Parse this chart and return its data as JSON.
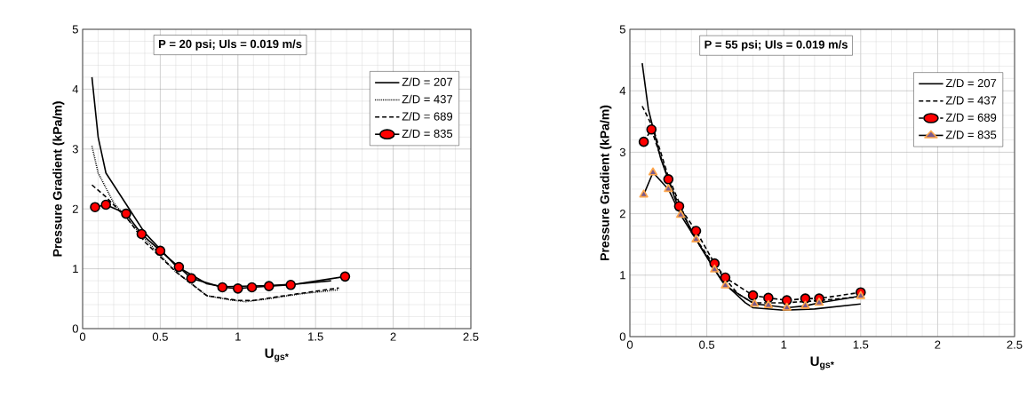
{
  "chart_data": [
    {
      "type": "line",
      "title": "P = 20 psi; Uls = 0.019 m/s",
      "xlabel": "U$_{gs*}$",
      "ylabel": "Pressure Gradient (kPa/m)",
      "xlim": [
        0,
        2.5
      ],
      "ylim": [
        0,
        5
      ],
      "xticks": [
        0,
        0.5,
        1,
        1.5,
        2,
        2.5
      ],
      "yticks": [
        0,
        1,
        2,
        3,
        4,
        5
      ],
      "grid": true,
      "legend": "top right",
      "series": [
        {
          "name": "Z/D = 207",
          "color": "#000000",
          "line_style": "solid",
          "marker": "none",
          "x": [
            0.06,
            0.1,
            0.15,
            0.25,
            0.4,
            0.6,
            0.8,
            0.9,
            1.2,
            1.4,
            1.6
          ],
          "values": [
            4.2,
            3.2,
            2.6,
            2.2,
            1.6,
            1.05,
            0.75,
            0.7,
            0.72,
            0.75,
            0.8
          ]
        },
        {
          "name": "Z/D = 437",
          "color": "#000000",
          "line_style": "dotted",
          "marker": "none",
          "x": [
            0.06,
            0.1,
            0.2,
            0.4,
            0.6,
            0.8,
            0.95,
            1.05,
            1.2,
            1.4,
            1.65
          ],
          "values": [
            3.05,
            2.6,
            2.1,
            1.5,
            0.95,
            0.55,
            0.48,
            0.45,
            0.5,
            0.58,
            0.65
          ]
        },
        {
          "name": "Z/D = 689",
          "color": "#000000",
          "line_style": "dashed",
          "marker": "none",
          "x": [
            0.06,
            0.15,
            0.3,
            0.4,
            0.6,
            0.8,
            1.0,
            1.1,
            1.3,
            1.65
          ],
          "values": [
            2.4,
            2.2,
            1.8,
            1.45,
            0.95,
            0.55,
            0.47,
            0.47,
            0.55,
            0.68
          ]
        },
        {
          "name": "Z/D = 835",
          "color": "#ff0000",
          "line_style": "solid",
          "marker": "circle",
          "x": [
            0.08,
            0.15,
            0.28,
            0.38,
            0.5,
            0.62,
            0.7,
            0.9,
            1.0,
            1.09,
            1.2,
            1.34,
            1.69
          ],
          "values": [
            2.03,
            2.07,
            1.92,
            1.58,
            1.3,
            1.03,
            0.84,
            0.69,
            0.67,
            0.69,
            0.71,
            0.73,
            0.87
          ]
        }
      ]
    },
    {
      "type": "line",
      "title": "P = 55 psi; Uls = 0.019 m/s",
      "xlabel": "U$_{gs*}$",
      "ylabel": "Pressure Gradient (kPa/m)",
      "xlim": [
        0,
        2.5
      ],
      "ylim": [
        0,
        5
      ],
      "xticks": [
        0,
        0.5,
        1,
        1.5,
        2,
        2.5
      ],
      "yticks": [
        0,
        1,
        2,
        3,
        4,
        5
      ],
      "grid": true,
      "legend": "top right",
      "series": [
        {
          "name": "Z/D = 207",
          "color": "#000000",
          "line_style": "solid",
          "marker": "none",
          "x": [
            0.08,
            0.12,
            0.2,
            0.3,
            0.45,
            0.6,
            0.75,
            0.8,
            1.0,
            1.2,
            1.5
          ],
          "values": [
            4.45,
            3.7,
            2.9,
            2.2,
            1.5,
            0.9,
            0.55,
            0.47,
            0.43,
            0.45,
            0.53
          ]
        },
        {
          "name": "Z/D = 437",
          "color": "#000000",
          "line_style": "dashed",
          "marker": "none",
          "x": [
            0.08,
            0.1,
            0.15,
            0.25,
            0.4,
            0.55,
            0.7,
            0.8,
            1.0,
            1.2,
            1.5
          ],
          "values": [
            3.75,
            3.65,
            3.4,
            2.6,
            1.7,
            1.15,
            0.7,
            0.55,
            0.55,
            0.58,
            0.65
          ]
        },
        {
          "name": "Z/D = 689",
          "color": "#ff0000",
          "line_style": "dashed",
          "marker": "circle",
          "x": [
            0.09,
            0.14,
            0.25,
            0.32,
            0.43,
            0.55,
            0.62,
            0.8,
            0.9,
            1.02,
            1.14,
            1.23,
            1.5
          ],
          "values": [
            3.17,
            3.37,
            2.56,
            2.12,
            1.72,
            1.19,
            0.96,
            0.67,
            0.63,
            0.59,
            0.62,
            0.62,
            0.72
          ]
        },
        {
          "name": "Z/D = 835",
          "color": "#7a5a8c",
          "line_style": "solid",
          "marker": "triangle",
          "x": [
            0.09,
            0.15,
            0.25,
            0.33,
            0.43,
            0.55,
            0.62,
            0.81,
            0.9,
            1.02,
            1.14,
            1.23,
            1.5
          ],
          "values": [
            2.31,
            2.67,
            2.4,
            1.98,
            1.58,
            1.09,
            0.83,
            0.53,
            0.51,
            0.47,
            0.5,
            0.55,
            0.66
          ]
        }
      ]
    }
  ]
}
